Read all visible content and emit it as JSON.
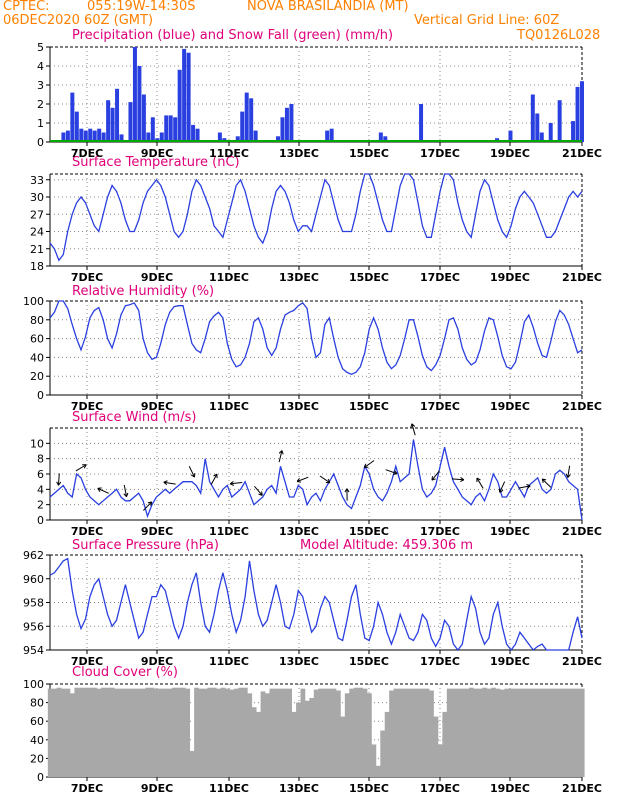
{
  "header": {
    "source": "CPTEC:",
    "coords": "055:19W-14:30S",
    "location": "NOVA BRASILANDIA (MT)",
    "init_time": "06DEC2020 60Z (GMT)",
    "grid_note": "Vertical Grid Line: 60Z",
    "model_code": "TQ0126L028"
  },
  "colors": {
    "header": "#ff8000",
    "title": "#e0007a",
    "line": "#2a3fe0",
    "precip": "#2a3fe0",
    "snow": "#00aa00",
    "cloud": "#a8a8a8",
    "arrow": "#000000"
  },
  "x_ticks": [
    "7DEC",
    "9DEC",
    "11DEC",
    "13DEC",
    "15DEC",
    "17DEC",
    "19DEC",
    "21DEC"
  ],
  "chart_data": [
    {
      "type": "bar",
      "title": "Precipitation (blue) and Snow Fall (green) (mm/h)",
      "x_range": [
        0,
        120
      ],
      "ylim": [
        0,
        5
      ],
      "y_ticks": [
        0,
        1,
        2,
        3,
        4,
        5
      ],
      "series": [
        {
          "name": "Precipitation",
          "values": [
            0,
            0,
            0,
            0.5,
            0.6,
            2.6,
            1.6,
            0.7,
            0.6,
            0.7,
            0.6,
            0.7,
            0.5,
            2.2,
            1.8,
            2.8,
            0.4,
            0,
            2.1,
            5.0,
            4.0,
            2.5,
            0.5,
            1.3,
            0.2,
            0.5,
            1.4,
            1.4,
            1.3,
            3.8,
            4.9,
            4.7,
            0.9,
            0.7,
            0.1,
            0,
            0,
            0,
            0.5,
            0.2,
            0,
            0,
            0.3,
            1.6,
            2.6,
            2.3,
            0.6,
            0,
            0.1,
            0.1,
            0,
            0.3,
            1.3,
            1.8,
            2.0,
            0.1,
            0,
            0.1,
            0,
            0,
            0,
            0,
            0.6,
            0.7,
            0.1,
            0,
            0,
            0,
            0,
            0,
            0,
            0,
            0,
            0,
            0.5,
            0.3,
            0,
            0,
            0,
            0,
            0,
            0,
            0,
            2.0,
            0,
            0,
            0,
            0,
            0,
            0,
            0,
            0,
            0,
            0,
            0.1,
            0,
            0,
            0,
            0,
            0,
            0.2,
            0,
            0,
            0.6,
            0.1,
            0,
            0,
            0,
            2.5,
            1.5,
            0.5,
            0,
            1.0,
            0.1,
            2.2,
            0.1,
            0,
            1.1,
            2.9,
            3.2
          ]
        },
        {
          "name": "Snow Fall",
          "values": []
        }
      ]
    },
    {
      "type": "line",
      "title": "Surface Temperature (nC)",
      "x_range": [
        0,
        120
      ],
      "ylim": [
        18,
        34
      ],
      "y_ticks": [
        18,
        21,
        24,
        27,
        30,
        33
      ],
      "series": [
        {
          "name": "Surface Temperature",
          "values": [
            22,
            21,
            19,
            20,
            24,
            27,
            29,
            30,
            29,
            27,
            25,
            24,
            27,
            30,
            32,
            31,
            29,
            26,
            24,
            24,
            26,
            29,
            31,
            32,
            33,
            32,
            30,
            27,
            24,
            23,
            24,
            27,
            31,
            33,
            32,
            30,
            28,
            25,
            24,
            23,
            26,
            29,
            32,
            33,
            31,
            28,
            25,
            23,
            22,
            24,
            28,
            31,
            32,
            31,
            29,
            26,
            24,
            25,
            25,
            24,
            27,
            30,
            33,
            32,
            29,
            26,
            24,
            24,
            24,
            27,
            31,
            34,
            34,
            32,
            29,
            26,
            24,
            24,
            28,
            32,
            34,
            34,
            33,
            29,
            25,
            23,
            23,
            27,
            31,
            34,
            34,
            33,
            29,
            26,
            24,
            23,
            27,
            31,
            33,
            32,
            29,
            26,
            24,
            23,
            25,
            28,
            30,
            31,
            30,
            29,
            27,
            25,
            23,
            23,
            24,
            26,
            28,
            30,
            31,
            30,
            31
          ]
        }
      ]
    },
    {
      "type": "line",
      "title": "Relative Humidity (%)",
      "x_range": [
        0,
        120
      ],
      "ylim": [
        0,
        100
      ],
      "y_ticks": [
        0,
        20,
        40,
        60,
        80,
        100
      ],
      "series": [
        {
          "name": "Relative Humidity",
          "values": [
            82,
            88,
            100,
            100,
            92,
            75,
            60,
            48,
            62,
            82,
            90,
            93,
            80,
            60,
            50,
            65,
            85,
            95,
            96,
            98,
            90,
            60,
            45,
            38,
            40,
            55,
            75,
            88,
            94,
            95,
            95,
            75,
            55,
            48,
            45,
            60,
            78,
            84,
            88,
            82,
            55,
            38,
            30,
            32,
            40,
            55,
            78,
            82,
            70,
            50,
            42,
            50,
            70,
            85,
            88,
            90,
            95,
            98,
            92,
            60,
            40,
            45,
            75,
            82,
            60,
            40,
            28,
            24,
            22,
            24,
            30,
            45,
            70,
            82,
            70,
            50,
            35,
            28,
            32,
            42,
            60,
            80,
            80,
            62,
            42,
            30,
            26,
            32,
            42,
            60,
            80,
            82,
            70,
            50,
            38,
            32,
            35,
            48,
            68,
            82,
            80,
            62,
            42,
            30,
            28,
            35,
            55,
            78,
            85,
            72,
            55,
            42,
            40,
            58,
            78,
            90,
            85,
            75,
            60,
            45,
            48
          ]
        }
      ]
    },
    {
      "type": "line",
      "title": "Surface Wind (m/s)",
      "x_range": [
        0,
        120
      ],
      "ylim": [
        0,
        12
      ],
      "y_ticks": [
        0,
        2,
        4,
        6,
        8,
        10
      ],
      "series": [
        {
          "name": "Surface Wind",
          "values": [
            3,
            3.5,
            4,
            4.5,
            3.5,
            3,
            6,
            5.5,
            4,
            3,
            2.5,
            2,
            2.5,
            3,
            3.5,
            4,
            3,
            2.5,
            2.5,
            3,
            3.5,
            2.5,
            0.5,
            2,
            3,
            3.5,
            4,
            3.5,
            4,
            4.5,
            5,
            5,
            5,
            4.5,
            3.5,
            8,
            5,
            4,
            3,
            4,
            4.5,
            3,
            3.5,
            4,
            5,
            3.5,
            2,
            2.5,
            3,
            4,
            4.5,
            3.5,
            7,
            5,
            3,
            3,
            4.5,
            4,
            2,
            3,
            3.5,
            2.5,
            4,
            5,
            6,
            4.5,
            3,
            2,
            1.5,
            3,
            4.5,
            7,
            6,
            4,
            3,
            2.5,
            3.5,
            5,
            7,
            5,
            5.5,
            6,
            10.5,
            7,
            4,
            3,
            3.5,
            4.5,
            7,
            9.5,
            7,
            5,
            4,
            3,
            2.5,
            2,
            3,
            3.5,
            2.5,
            4,
            6,
            5,
            3,
            3,
            4,
            5,
            4,
            3,
            4.5,
            5,
            5.5,
            4,
            3.5,
            4,
            6,
            6.5,
            6,
            5,
            4.5,
            4,
            0
          ]
        }
      ]
    },
    {
      "type": "line",
      "title": "Surface Pressure (hPa)",
      "x_range": [
        0,
        120
      ],
      "ylim": [
        954,
        962
      ],
      "y_ticks": [
        954,
        956,
        958,
        960,
        962
      ],
      "series": [
        {
          "name": "Surface Pressure",
          "values": [
            960.3,
            960.5,
            961,
            961.5,
            961.7,
            959,
            957,
            955.8,
            956.6,
            958.5,
            959.5,
            960,
            958.5,
            957,
            956,
            956.5,
            958,
            959.5,
            958,
            956.5,
            955,
            955.5,
            957,
            958.5,
            958.5,
            959.5,
            959,
            957.5,
            956,
            955,
            956,
            958,
            959.5,
            960.5,
            958,
            956,
            955.5,
            957,
            959,
            960.5,
            959,
            957,
            955.5,
            956.5,
            958.5,
            961.5,
            959,
            957,
            956,
            956.5,
            958,
            959.5,
            958,
            956,
            955.8,
            957,
            959,
            958.5,
            957,
            955.5,
            956,
            957.5,
            958.5,
            958,
            956.5,
            955,
            954.8,
            956.5,
            958.5,
            959.5,
            957,
            955,
            954.8,
            956,
            958,
            957,
            955.5,
            954.5,
            955.5,
            957,
            956,
            955,
            954.8,
            955.5,
            957,
            956.5,
            955,
            954.3,
            955,
            956.5,
            956,
            954.5,
            954,
            954.5,
            956.5,
            958.5,
            957.5,
            955.5,
            954.5,
            955,
            957,
            958,
            956,
            954.5,
            954,
            954.5,
            955.5,
            955,
            954.5,
            954,
            954.3,
            954.5,
            954,
            954,
            954,
            954,
            954,
            954,
            955.5,
            956.8,
            955
          ]
        }
      ],
      "annotation": "Model Altitude: 459.306 m"
    },
    {
      "type": "area",
      "title": "Cloud Cover (%)",
      "x_range": [
        0,
        120
      ],
      "ylim": [
        0,
        100
      ],
      "y_ticks": [
        0,
        20,
        40,
        60,
        80,
        100
      ],
      "series": [
        {
          "name": "Cloud Cover",
          "values": [
            95,
            95,
            96,
            95,
            95,
            90,
            96,
            96,
            96,
            96,
            96,
            95,
            96,
            96,
            96,
            95,
            95,
            95,
            95,
            95,
            95,
            95,
            96,
            96,
            95,
            95,
            95,
            95,
            96,
            96,
            96,
            95,
            28,
            96,
            95,
            95,
            96,
            96,
            95,
            96,
            95,
            94,
            95,
            96,
            96,
            90,
            75,
            70,
            92,
            90,
            95,
            95,
            95,
            95,
            95,
            70,
            80,
            95,
            82,
            85,
            94,
            95,
            95,
            95,
            95,
            93,
            65,
            90,
            95,
            96,
            96,
            95,
            90,
            35,
            12,
            50,
            70,
            93,
            95,
            95,
            95,
            95,
            95,
            95,
            95,
            95,
            93,
            65,
            35,
            70,
            95,
            95,
            95,
            95,
            95,
            96,
            95,
            95,
            96,
            95,
            96,
            95,
            94,
            95,
            95,
            95,
            95,
            95,
            95,
            95,
            95,
            95,
            95,
            95,
            95,
            95,
            95,
            95,
            95,
            95,
            95
          ]
        }
      ]
    }
  ]
}
